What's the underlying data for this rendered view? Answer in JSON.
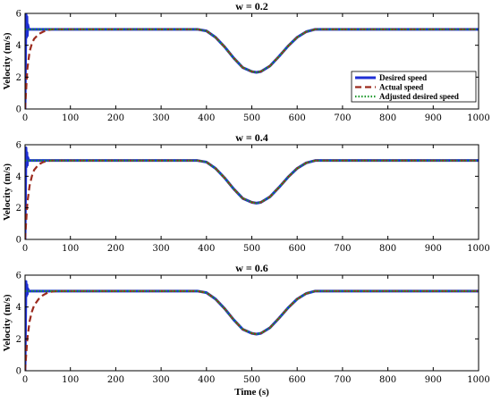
{
  "figure": {
    "xlabel": "Time (s)"
  },
  "colors": {
    "desired": "#1f2fd6",
    "actual": "#9b2a1e",
    "adjusted": "#1f9a2e"
  },
  "legend": {
    "placement": "right-middle of first panel",
    "entries": [
      "Desired speed",
      "Actual speed",
      "Adjusted desired speed"
    ]
  },
  "chart_data": [
    {
      "type": "line",
      "title": "w = 0.2",
      "xlabel": "",
      "ylabel": "Velocity (m/s)",
      "xlim": [
        0,
        1000
      ],
      "ylim": [
        0,
        6
      ],
      "xticks": [
        0,
        100,
        200,
        300,
        400,
        500,
        600,
        700,
        800,
        900,
        1000
      ],
      "yticks": [
        0,
        2,
        4,
        6
      ],
      "series": [
        {
          "name": "Desired speed",
          "style": "solid",
          "x": [
            0,
            2,
            3,
            4,
            5,
            6,
            8,
            10,
            380,
            400,
            420,
            440,
            460,
            480,
            500,
            510,
            520,
            540,
            560,
            580,
            600,
            620,
            640,
            1000
          ],
          "y": [
            0,
            6,
            4.5,
            5.8,
            4.6,
            5.3,
            5,
            5,
            5,
            4.9,
            4.5,
            3.9,
            3.2,
            2.6,
            2.35,
            2.3,
            2.35,
            2.7,
            3.3,
            3.95,
            4.5,
            4.85,
            5,
            5
          ]
        },
        {
          "name": "Actual speed",
          "style": "dashed",
          "x": [
            0,
            5,
            10,
            15,
            20,
            30,
            40,
            50,
            60,
            380,
            400,
            420,
            440,
            460,
            480,
            500,
            510,
            520,
            540,
            560,
            580,
            600,
            620,
            640,
            1000
          ],
          "y": [
            0,
            2.5,
            3.6,
            4.1,
            4.4,
            4.7,
            4.85,
            4.95,
            5,
            5,
            4.9,
            4.5,
            3.9,
            3.2,
            2.6,
            2.35,
            2.3,
            2.35,
            2.7,
            3.3,
            3.95,
            4.5,
            4.85,
            5,
            5
          ]
        },
        {
          "name": "Adjusted desired speed",
          "style": "dotted",
          "x": [
            0,
            3,
            5,
            10,
            380,
            400,
            420,
            440,
            460,
            480,
            500,
            510,
            520,
            540,
            560,
            580,
            600,
            620,
            640,
            1000
          ],
          "y": [
            5,
            5,
            5,
            5,
            5,
            4.9,
            4.5,
            3.9,
            3.2,
            2.6,
            2.35,
            2.3,
            2.35,
            2.7,
            3.3,
            3.95,
            4.5,
            4.85,
            5,
            5
          ]
        }
      ]
    },
    {
      "type": "line",
      "title": "w = 0.4",
      "xlabel": "",
      "ylabel": "Velocity (m/s)",
      "xlim": [
        0,
        1000
      ],
      "ylim": [
        0,
        6
      ],
      "xticks": [
        0,
        100,
        200,
        300,
        400,
        500,
        600,
        700,
        800,
        900,
        1000
      ],
      "yticks": [
        0,
        2,
        4,
        6
      ],
      "series": [
        {
          "name": "Desired speed",
          "style": "solid",
          "x": [
            0,
            2,
            3,
            4,
            5,
            6,
            8,
            10,
            380,
            400,
            420,
            440,
            460,
            480,
            500,
            510,
            520,
            540,
            560,
            580,
            600,
            620,
            640,
            1000
          ],
          "y": [
            0,
            5.8,
            4.6,
            5.5,
            4.7,
            5.2,
            5,
            5,
            5,
            4.9,
            4.5,
            3.9,
            3.2,
            2.6,
            2.35,
            2.3,
            2.35,
            2.7,
            3.3,
            3.95,
            4.5,
            4.85,
            5,
            5
          ]
        },
        {
          "name": "Actual speed",
          "style": "dashed",
          "x": [
            0,
            5,
            10,
            15,
            20,
            30,
            40,
            50,
            60,
            380,
            400,
            420,
            440,
            460,
            480,
            500,
            510,
            520,
            540,
            560,
            580,
            600,
            620,
            640,
            1000
          ],
          "y": [
            0,
            2.3,
            3.4,
            4.0,
            4.4,
            4.75,
            4.9,
            4.97,
            5,
            5,
            4.9,
            4.5,
            3.9,
            3.2,
            2.6,
            2.35,
            2.3,
            2.35,
            2.7,
            3.3,
            3.95,
            4.5,
            4.85,
            5,
            5
          ]
        },
        {
          "name": "Adjusted desired speed",
          "style": "dotted",
          "x": [
            0,
            3,
            5,
            10,
            380,
            400,
            420,
            440,
            460,
            480,
            500,
            510,
            520,
            540,
            560,
            580,
            600,
            620,
            640,
            1000
          ],
          "y": [
            5,
            5,
            5,
            5,
            5,
            4.9,
            4.5,
            3.9,
            3.2,
            2.6,
            2.35,
            2.3,
            2.35,
            2.7,
            3.3,
            3.95,
            4.5,
            4.85,
            5,
            5
          ]
        }
      ]
    },
    {
      "type": "line",
      "title": "w = 0.6",
      "xlabel": "Time (s)",
      "ylabel": "Velocity (m/s)",
      "xlim": [
        0,
        1000
      ],
      "ylim": [
        0,
        6
      ],
      "xticks": [
        0,
        100,
        200,
        300,
        400,
        500,
        600,
        700,
        800,
        900,
        1000
      ],
      "yticks": [
        0,
        2,
        4,
        6
      ],
      "series": [
        {
          "name": "Desired speed",
          "style": "solid",
          "x": [
            0,
            2,
            3,
            4,
            5,
            6,
            8,
            10,
            380,
            400,
            420,
            440,
            460,
            480,
            500,
            510,
            520,
            540,
            560,
            580,
            600,
            620,
            640,
            1000
          ],
          "y": [
            0,
            5.6,
            4.7,
            5.4,
            4.8,
            5.15,
            5,
            5,
            5,
            4.9,
            4.5,
            3.9,
            3.2,
            2.6,
            2.35,
            2.3,
            2.35,
            2.7,
            3.3,
            3.95,
            4.5,
            4.85,
            5,
            5
          ]
        },
        {
          "name": "Actual speed",
          "style": "dashed",
          "x": [
            0,
            5,
            10,
            15,
            20,
            30,
            40,
            50,
            60,
            70,
            380,
            400,
            420,
            440,
            460,
            480,
            500,
            510,
            520,
            540,
            560,
            580,
            600,
            620,
            640,
            1000
          ],
          "y": [
            0,
            2.0,
            3.1,
            3.7,
            4.1,
            4.5,
            4.75,
            4.9,
            4.97,
            5,
            5,
            4.9,
            4.5,
            3.9,
            3.2,
            2.6,
            2.35,
            2.3,
            2.35,
            2.7,
            3.3,
            3.95,
            4.5,
            4.85,
            5,
            5
          ]
        },
        {
          "name": "Adjusted desired speed",
          "style": "dotted",
          "x": [
            0,
            3,
            5,
            10,
            380,
            400,
            420,
            440,
            460,
            480,
            500,
            510,
            520,
            540,
            560,
            580,
            600,
            620,
            640,
            1000
          ],
          "y": [
            5,
            5,
            5,
            5,
            5,
            4.9,
            4.5,
            3.9,
            3.2,
            2.6,
            2.35,
            2.3,
            2.35,
            2.7,
            3.3,
            3.95,
            4.5,
            4.85,
            5,
            5
          ]
        }
      ]
    }
  ]
}
